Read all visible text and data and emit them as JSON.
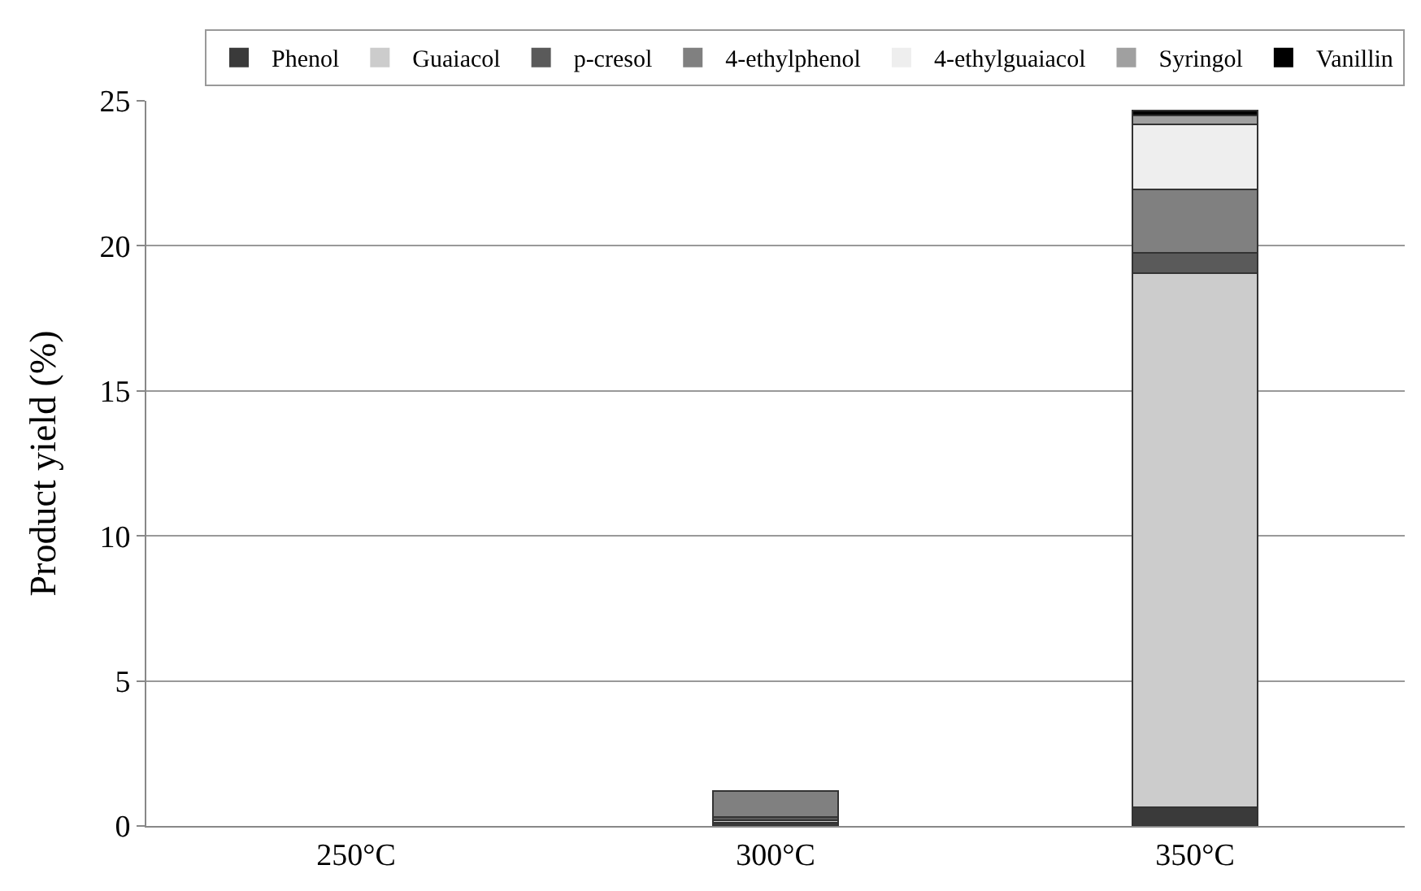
{
  "chart_data": {
    "type": "bar",
    "stacked": true,
    "ylabel": "Product yield (%)",
    "categories": [
      "250°C",
      "300°C",
      "350°C"
    ],
    "ylim": [
      0,
      25
    ],
    "yticks": [
      0,
      5,
      10,
      15,
      20,
      25
    ],
    "grid": "y",
    "legend": "top",
    "series": [
      {
        "name": "Phenol",
        "color": "#3a3a3a",
        "values": [
          0,
          0.1,
          0.65
        ]
      },
      {
        "name": "Guaiacol",
        "color": "#cccccc",
        "values": [
          0,
          0.1,
          18.4
        ]
      },
      {
        "name": "p-cresol",
        "color": "#5a5a5a",
        "values": [
          0,
          0.1,
          0.7
        ]
      },
      {
        "name": "4-ethylphenol",
        "color": "#808080",
        "values": [
          0,
          0.9,
          2.2
        ]
      },
      {
        "name": "4-ethylguaiacol",
        "color": "#eeeeee",
        "values": [
          0,
          0,
          2.25
        ]
      },
      {
        "name": "Syringol",
        "color": "#a0a0a0",
        "values": [
          0,
          0,
          0.3
        ]
      },
      {
        "name": "Vanillin",
        "color": "#000000",
        "values": [
          0,
          0,
          0.15
        ]
      }
    ]
  }
}
